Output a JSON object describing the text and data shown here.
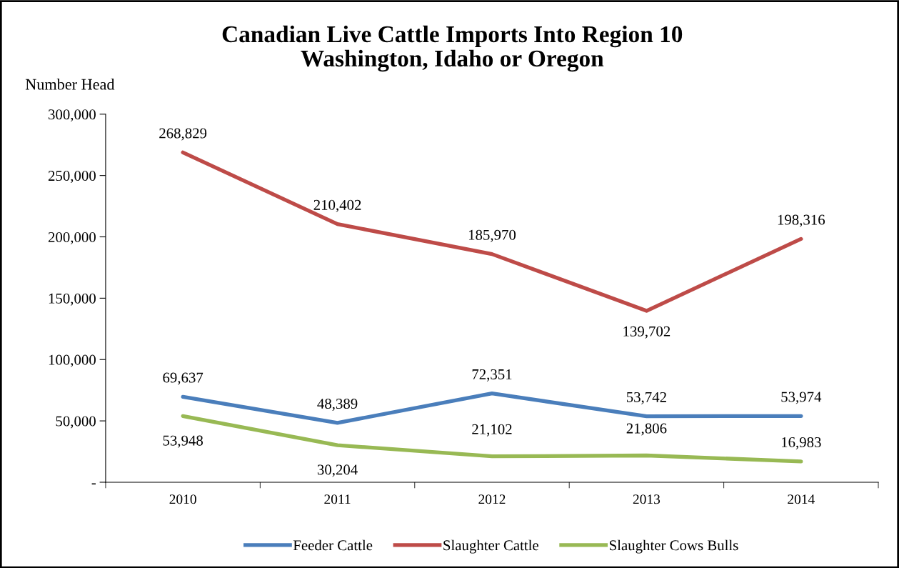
{
  "chart_data": {
    "type": "line",
    "title": "Canadian Live Cattle Imports Into Region 10\nWashington, Idaho or Oregon",
    "ylabel": "Number Head",
    "categories": [
      "2010",
      "2011",
      "2012",
      "2013",
      "2014"
    ],
    "series": [
      {
        "name": "Feeder Cattle",
        "color": "#4a7ebb",
        "values": [
          69637,
          48389,
          72351,
          53742,
          53974
        ],
        "value_labels": [
          "69,637",
          "48,389",
          "72,351",
          "53,742",
          "53,974"
        ]
      },
      {
        "name": "Slaughter Cattle",
        "color": "#be4b48",
        "values": [
          268829,
          210402,
          185970,
          139702,
          198316
        ],
        "value_labels": [
          "268,829",
          "210,402",
          "185,970",
          "139,702",
          "198,316"
        ]
      },
      {
        "name": "Slaughter Cows Bulls",
        "color": "#98b954",
        "values": [
          53948,
          30204,
          21102,
          21806,
          16983
        ],
        "value_labels": [
          "53,948",
          "30,204",
          "21,102",
          "21,806",
          "16,983"
        ]
      }
    ],
    "ylim": [
      0,
      300000
    ],
    "yticks": [
      {
        "value": 0,
        "label": "-"
      },
      {
        "value": 50000,
        "label": "50,000"
      },
      {
        "value": 100000,
        "label": "100,000"
      },
      {
        "value": 150000,
        "label": "150,000"
      },
      {
        "value": 200000,
        "label": "200,000"
      },
      {
        "value": 250000,
        "label": "250,000"
      },
      {
        "value": 300000,
        "label": "300,000"
      }
    ],
    "legend": "bottom",
    "grid": false,
    "marker": "none",
    "line_style": "solid"
  }
}
